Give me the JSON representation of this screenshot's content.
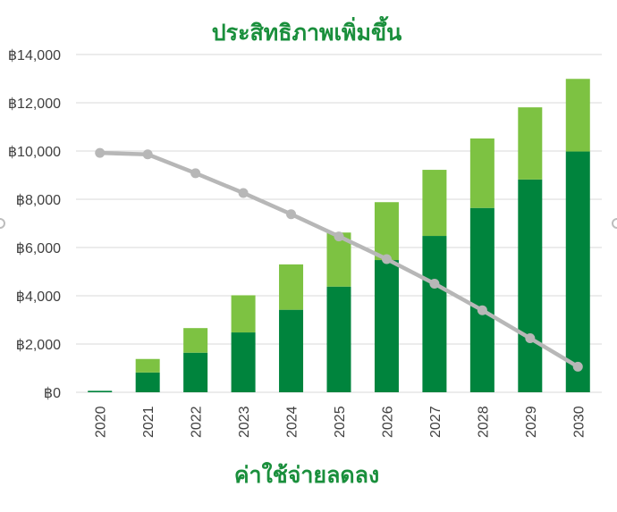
{
  "colors": {
    "title": "#1a8f3c",
    "bar_dark": "#00843d",
    "bar_light": "#7dc242",
    "line": "#b7b7b7",
    "grid": "#d9d9d9",
    "tick_text": "#404040"
  },
  "chart_data": {
    "type": "bar",
    "title": "ประสิทธิภาพเพิ่มขึ้น",
    "xlabel": "ค่าใช้จ่ายลดลง",
    "ylabel": "",
    "ylim": [
      0,
      14000
    ],
    "y_ticks": [
      "฿0",
      "฿2,000",
      "฿4,000",
      "฿6,000",
      "฿8,000",
      "฿10,000",
      "฿12,000",
      "฿14,000"
    ],
    "y_tick_values": [
      0,
      2000,
      4000,
      6000,
      8000,
      10000,
      12000,
      14000
    ],
    "categories": [
      "2020",
      "2021",
      "2022",
      "2023",
      "2024",
      "2025",
      "2026",
      "2027",
      "2028",
      "2029",
      "2030"
    ],
    "stacked": true,
    "grid": true,
    "legend": "none",
    "series": [
      {
        "type": "bar",
        "color_key": "bar_dark",
        "values": [
          60,
          820,
          1640,
          2480,
          3420,
          4380,
          5480,
          6480,
          7640,
          8820,
          9980
        ]
      },
      {
        "type": "bar",
        "color_key": "bar_light",
        "values": [
          0,
          560,
          1020,
          1540,
          1880,
          2240,
          2400,
          2740,
          2880,
          2990,
          3010
        ]
      },
      {
        "type": "line",
        "color_key": "line",
        "values": [
          9920,
          9860,
          9080,
          8260,
          7380,
          6460,
          5520,
          4500,
          3400,
          2240,
          1060
        ]
      }
    ]
  }
}
